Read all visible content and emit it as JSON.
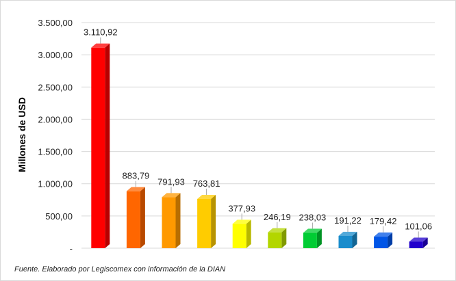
{
  "chart_data": {
    "type": "bar",
    "title": "",
    "xlabel": "",
    "ylabel": "Millones de USD",
    "ylim": [
      0,
      3500
    ],
    "yticks": [
      0,
      500,
      1000,
      1500,
      2000,
      2500,
      3000,
      3500
    ],
    "ytick_labels": [
      "-",
      "500,00",
      "1.000,00",
      "1.500,00",
      "2.000,00",
      "2.500,00",
      "3.000,00",
      "3.500,00"
    ],
    "grid": true,
    "legend": "none",
    "values": [
      3110.92,
      883.79,
      791.93,
      763.81,
      377.93,
      246.19,
      238.03,
      191.22,
      179.42,
      101.06
    ],
    "data_labels": [
      "3.110,92",
      "883,79",
      "791,93",
      "763,81",
      "377,93",
      "246,19",
      "238,03",
      "191,22",
      "179,42",
      "101,06"
    ],
    "colors": [
      "#ff0000",
      "#ff6600",
      "#ff9900",
      "#ffcc00",
      "#ffff00",
      "#b3d600",
      "#00cc33",
      "#1a8ccc",
      "#0055e6",
      "#2200cc"
    ],
    "source": "Fuente. Elaborado por Legiscomex con información de la DIAN"
  }
}
